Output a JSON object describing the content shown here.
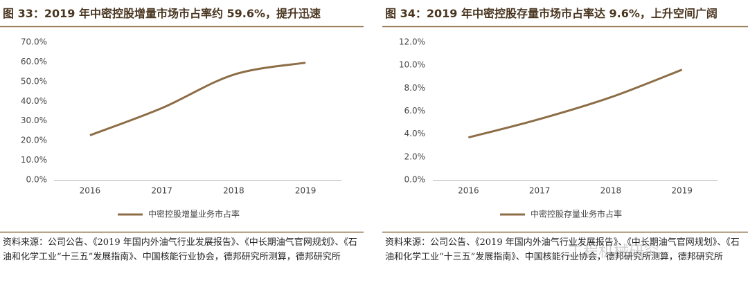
{
  "chart_data": [
    {
      "type": "line",
      "title": "图 33：2019 年中密控股增量市场市占率约 59.6%，提升迅速",
      "categories": [
        "2016",
        "2017",
        "2018",
        "2019"
      ],
      "series": [
        {
          "name": "中密控股增量业务市占率",
          "color": "#8c6d46",
          "values": [
            22.7,
            36.5,
            53.5,
            59.6
          ]
        }
      ],
      "ylim": [
        0,
        70
      ],
      "yticks": [
        {
          "value": 0,
          "label": "0.0%"
        },
        {
          "value": 10,
          "label": "10.0%"
        },
        {
          "value": 20,
          "label": "20.0%"
        },
        {
          "value": 30,
          "label": "30.0%"
        },
        {
          "value": 40,
          "label": "40.0%"
        },
        {
          "value": 50,
          "label": "50.0%"
        },
        {
          "value": 60,
          "label": "60.0%"
        },
        {
          "value": 70,
          "label": "70.0%"
        }
      ],
      "grid": false,
      "legend": "bottom",
      "source": "资料来源：公司公告、《2019 年国内外油气行业发展报告》、《中长期油气官网规划》、《石油和化学工业“十三五”发展指南》、中国核能行业协会，德邦研究所测算，德邦研究所"
    },
    {
      "type": "line",
      "title": "图 34：2019 年中密控股存量市场市占率达 9.6%，上升空间广阔",
      "categories": [
        "2016",
        "2017",
        "2018",
        "2019"
      ],
      "series": [
        {
          "name": "中密控股存量业务市占率",
          "color": "#8c6d46",
          "values": [
            3.7,
            5.3,
            7.2,
            9.6
          ]
        }
      ],
      "ylim": [
        0,
        12
      ],
      "yticks": [
        {
          "value": 0,
          "label": "0.0%"
        },
        {
          "value": 2,
          "label": "2.0%"
        },
        {
          "value": 4,
          "label": "4.0%"
        },
        {
          "value": 6,
          "label": "6.0%"
        },
        {
          "value": 8,
          "label": "8.0%"
        },
        {
          "value": 10,
          "label": "10.0%"
        },
        {
          "value": 12,
          "label": "12.0%"
        }
      ],
      "grid": false,
      "legend": "bottom",
      "source": "资料来源：公司公告、《2019 年国内外油气行业发展报告》、《中长期油气官网规划》、《石油和化学工业“十三五”发展指南》、中国核能行业协会，德邦研究所测算，德邦研究所"
    }
  ],
  "watermark": "工程机械研究"
}
